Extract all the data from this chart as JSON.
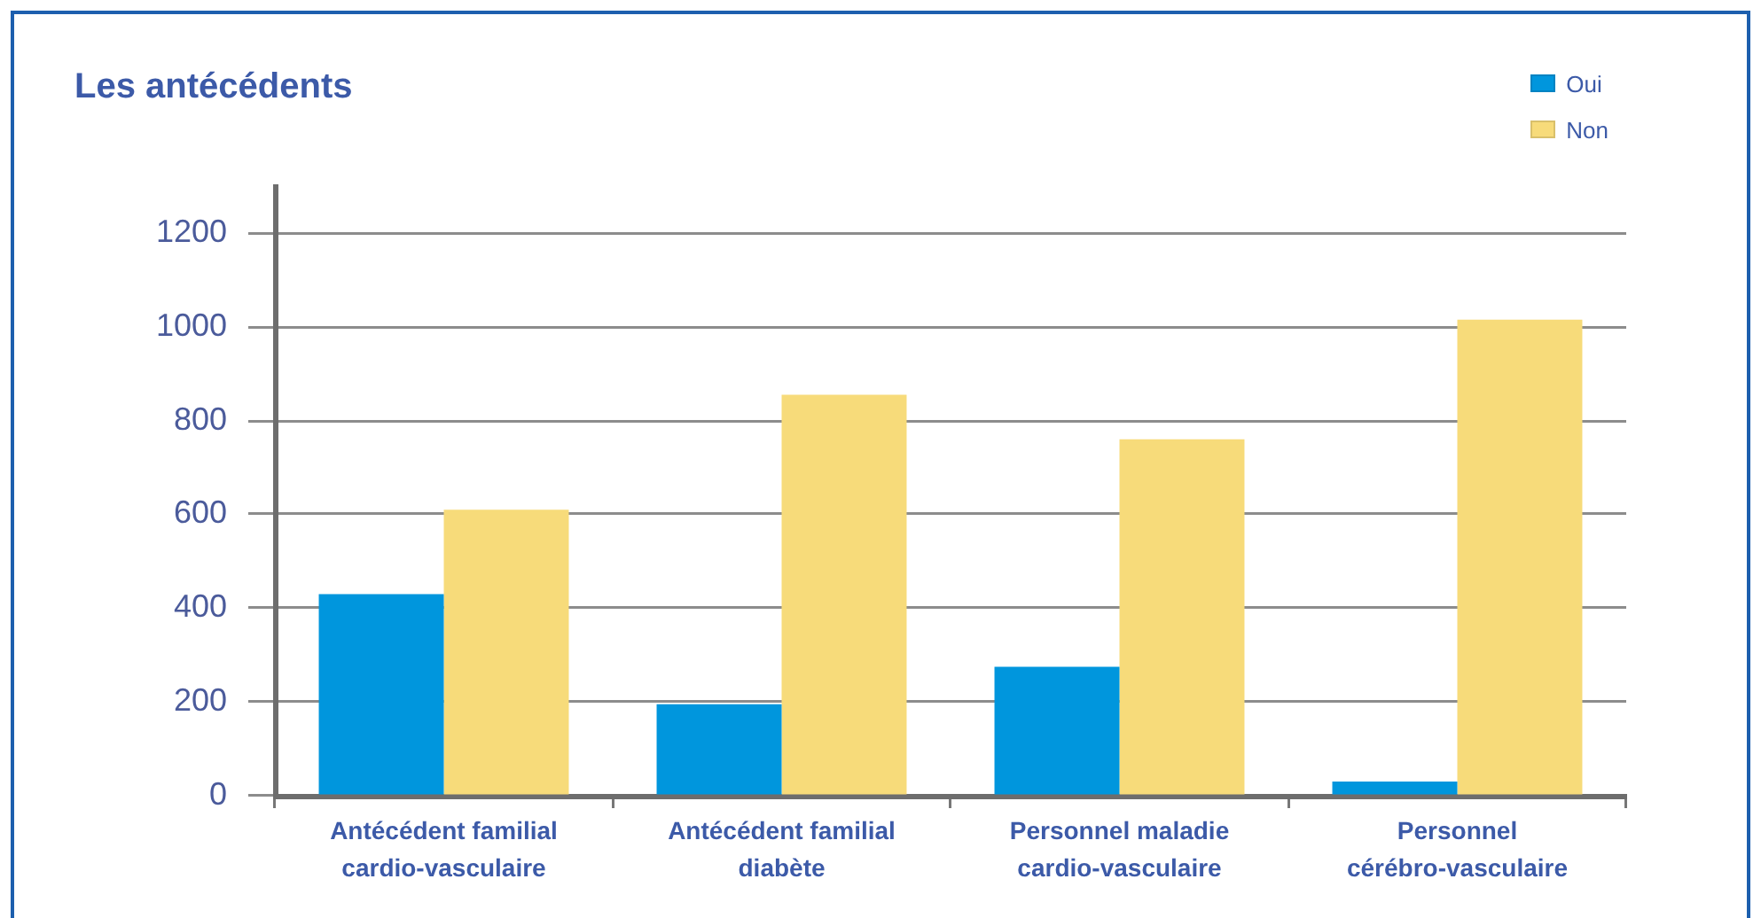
{
  "chart_data": {
    "type": "bar",
    "title": "Les antécédents",
    "categories": [
      "Antécédent familial cardio-vasculaire",
      "Antécédent familial diabète",
      "Personnel maladie cardio-vasculaire",
      "Personnel cérébro-vasculaire"
    ],
    "series": [
      {
        "name": "Oui",
        "color": "#0096dd",
        "values": [
          430,
          195,
          275,
          30
        ]
      },
      {
        "name": "Non",
        "color": "#f7db7a",
        "values": [
          610,
          855,
          760,
          1015
        ]
      }
    ],
    "ylim": [
      0,
      1300
    ],
    "yticks": [
      0,
      200,
      400,
      600,
      800,
      1000,
      1200
    ],
    "grid": "y",
    "legend": "top right"
  }
}
